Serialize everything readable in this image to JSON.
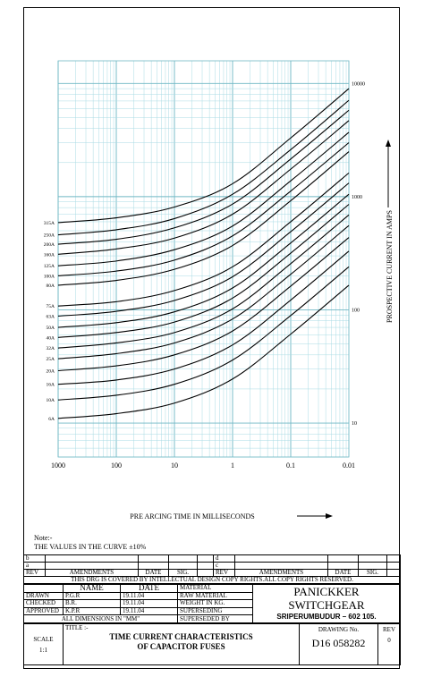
{
  "chart_data": {
    "type": "line",
    "xlabel": "PRE ARCING TIME IN MILLISECONDS",
    "ylabel": "PROSPECTIVE CURRENT IN AMPS",
    "x_scale": "log",
    "y_scale": "log",
    "x_ticks": [
      "1000",
      "100",
      "10",
      "1",
      "0.1",
      "0.01"
    ],
    "y_ticks": [
      "10000",
      "1000",
      "100",
      "10"
    ],
    "series": [
      {
        "name": "315A",
        "x": [
          1000,
          100,
          10,
          1,
          0.1,
          0.01
        ],
        "y": [
          590,
          650,
          810,
          1300,
          3300,
          9000
        ]
      },
      {
        "name": "250A",
        "x": [
          1000,
          100,
          10,
          1,
          0.1,
          0.01
        ],
        "y": [
          460,
          510,
          640,
          1050,
          2600,
          7100
        ]
      },
      {
        "name": "200A",
        "x": [
          1000,
          100,
          10,
          1,
          0.1,
          0.01
        ],
        "y": [
          380,
          420,
          530,
          860,
          2150,
          5800
        ]
      },
      {
        "name": "160A",
        "x": [
          1000,
          100,
          10,
          1,
          0.1,
          0.01
        ],
        "y": [
          310,
          345,
          430,
          700,
          1750,
          4700
        ]
      },
      {
        "name": "125A",
        "x": [
          1000,
          100,
          10,
          1,
          0.1,
          0.01
        ],
        "y": [
          245,
          270,
          340,
          550,
          1380,
          3700
        ]
      },
      {
        "name": "100A",
        "x": [
          1000,
          100,
          10,
          1,
          0.1,
          0.01
        ],
        "y": [
          200,
          220,
          275,
          450,
          1120,
          3000
        ]
      },
      {
        "name": "80A",
        "x": [
          1000,
          100,
          10,
          1,
          0.1,
          0.01
        ],
        "y": [
          165,
          182,
          228,
          370,
          920,
          2500
        ]
      },
      {
        "name": "75A",
        "x": [
          1000,
          100,
          10,
          1,
          0.1,
          0.01
        ],
        "y": [
          108,
          118,
          148,
          240,
          600,
          1620
        ]
      },
      {
        "name": "63A",
        "x": [
          1000,
          100,
          10,
          1,
          0.1,
          0.01
        ],
        "y": [
          88,
          97,
          121,
          196,
          490,
          1320
        ]
      },
      {
        "name": "50A",
        "x": [
          1000,
          100,
          10,
          1,
          0.1,
          0.01
        ],
        "y": [
          70,
          77,
          96,
          156,
          390,
          1050
        ]
      },
      {
        "name": "40A",
        "x": [
          1000,
          100,
          10,
          1,
          0.1,
          0.01
        ],
        "y": [
          57,
          63,
          78,
          127,
          317,
          855
        ]
      },
      {
        "name": "32A",
        "x": [
          1000,
          100,
          10,
          1,
          0.1,
          0.01
        ],
        "y": [
          46,
          51,
          63,
          102,
          256,
          690
        ]
      },
      {
        "name": "25A",
        "x": [
          1000,
          100,
          10,
          1,
          0.1,
          0.01
        ],
        "y": [
          37,
          41,
          51,
          83,
          206,
          556
        ]
      },
      {
        "name": "20A",
        "x": [
          1000,
          100,
          10,
          1,
          0.1,
          0.01
        ],
        "y": [
          29,
          32,
          40,
          65,
          162,
          436
        ]
      },
      {
        "name": "16A",
        "x": [
          1000,
          100,
          10,
          1,
          0.1,
          0.01
        ],
        "y": [
          22,
          24,
          30,
          49,
          122,
          330
        ]
      },
      {
        "name": "10A",
        "x": [
          1000,
          100,
          10,
          1,
          0.1,
          0.01
        ],
        "y": [
          16,
          17.6,
          22,
          36,
          89,
          240
        ]
      },
      {
        "name": "6A",
        "x": [
          1000,
          100,
          10,
          1,
          0.1,
          0.01
        ],
        "y": [
          11,
          12.1,
          15,
          24.5,
          61,
          165
        ]
      }
    ]
  },
  "note": {
    "heading": "Note:-",
    "text": "THE VALUES IN THE CURVE ±10%"
  },
  "title_block": {
    "rev_rows": [
      "b",
      "a"
    ],
    "rev_rows_right": [
      "d",
      "c"
    ],
    "rev": "REV",
    "amendments": "AMENDMENTS",
    "date": "DATE",
    "sig": "SIG.",
    "copyright": "THIS DRG IS COVERED BY INTELLECTUAL DESIGN COPY RIGHTS.ALL COPY RIGHTS RESERVED.",
    "name_h": "NAME",
    "date_h": "DATE",
    "material_h": "MATERIAL",
    "drawn": "DRAWN",
    "drawn_name": "P.G.R",
    "drawn_date": "19.11.04",
    "checked": "CHECKED",
    "checked_name": "B.R.",
    "checked_date": "19.11.04",
    "approved": "APPROVED",
    "approved_name": "K.P.R",
    "approved_date": "19.11.04",
    "raw_material": "RAW MATERIAL",
    "weight": "WEIGHT IN KG.",
    "superseding": "SUPERSEDING",
    "superseded_by": "SUPERSEDED BY",
    "dimensions": "ALL DIMENSIONS IN \"MM\"",
    "company": "PANICKKER SWITCHGEAR",
    "address": "SRIPERUMBUDUR – 602 105.",
    "scale_h": "SCALE",
    "scale": "1:1",
    "title_h": "TITLE :-",
    "title1": "TIME CURRENT CHARACTERISTICS",
    "title2": "OF CAPACITOR FUSES",
    "drawing_no_h": "DRAWING No.",
    "drawing_no": "D16 058282",
    "rev_h": "REV",
    "rev_v": "0"
  }
}
